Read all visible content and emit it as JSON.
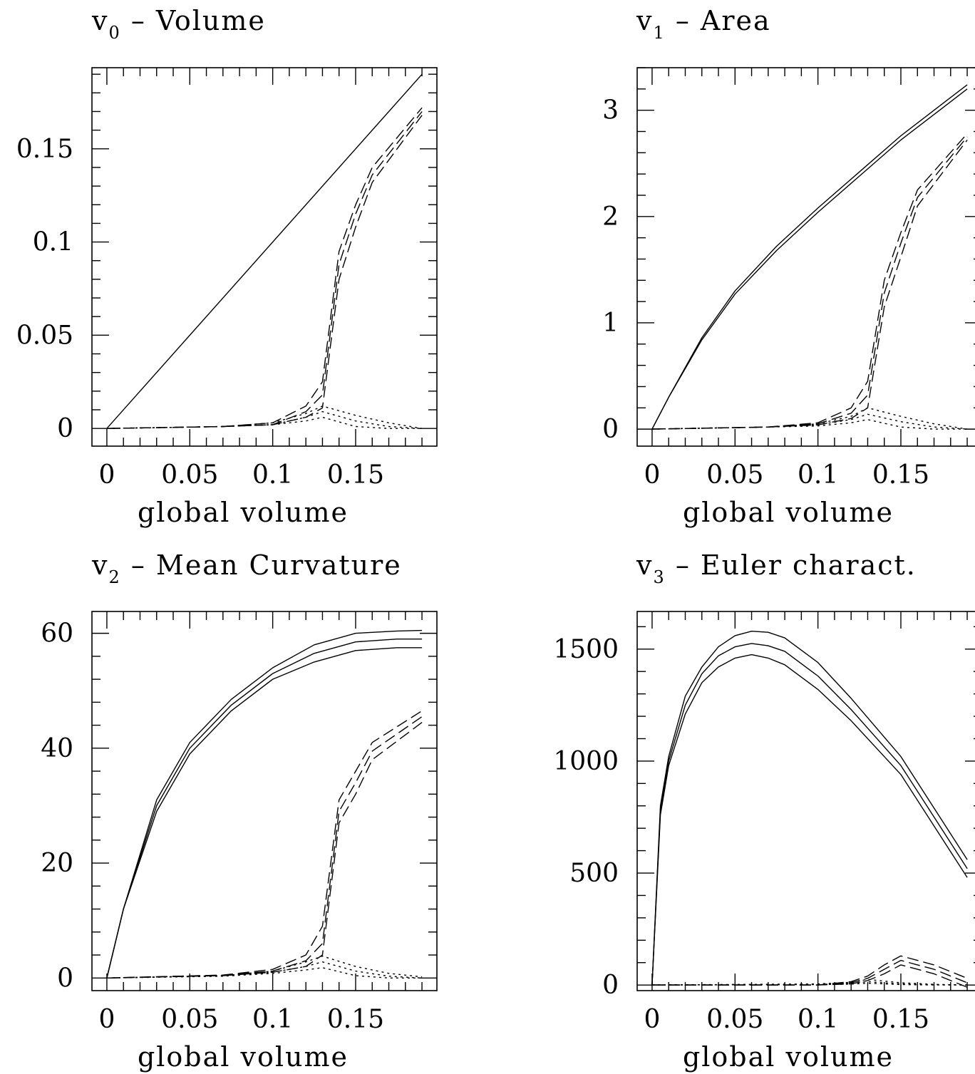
{
  "chart_data": [
    {
      "type": "line",
      "title": "v",
      "title_sub": "0",
      "title_rest": " – Volume",
      "xlabel": "global volume",
      "ylabel": "",
      "xlim": [
        -0.009,
        0.199
      ],
      "ylim": [
        -0.0095,
        0.1935
      ],
      "xticks": [
        "0",
        "0.05",
        "0.1",
        "0.15"
      ],
      "xtick_values": [
        0,
        0.05,
        0.1,
        0.15
      ],
      "yticks": [
        "0",
        "0.05",
        "0.1",
        "0.15"
      ],
      "ytick_values": [
        0,
        0.05,
        0.1,
        0.15
      ],
      "series": [
        {
          "style": "solid",
          "x": [
            0,
            0.19
          ],
          "y": [
            0,
            0.19
          ]
        },
        {
          "style": "dashed",
          "x": [
            0,
            0.07,
            0.1,
            0.12,
            0.13,
            0.14,
            0.15,
            0.16,
            0.19
          ],
          "y": [
            0,
            0.001,
            0.003,
            0.012,
            0.025,
            0.095,
            0.12,
            0.14,
            0.172
          ]
        },
        {
          "style": "dashed",
          "x": [
            0,
            0.07,
            0.1,
            0.12,
            0.13,
            0.14,
            0.15,
            0.16,
            0.19
          ],
          "y": [
            0,
            0.001,
            0.002,
            0.009,
            0.018,
            0.088,
            0.115,
            0.136,
            0.17
          ]
        },
        {
          "style": "dashed",
          "x": [
            0,
            0.07,
            0.1,
            0.12,
            0.13,
            0.14,
            0.15,
            0.16,
            0.19
          ],
          "y": [
            0,
            0.001,
            0.002,
            0.006,
            0.011,
            0.08,
            0.108,
            0.132,
            0.168
          ]
        },
        {
          "style": "dotted",
          "x": [
            0,
            0.07,
            0.1,
            0.12,
            0.13,
            0.15,
            0.17,
            0.19
          ],
          "y": [
            0,
            0.001,
            0.003,
            0.008,
            0.012,
            0.007,
            0.003,
            0
          ]
        },
        {
          "style": "dotted",
          "x": [
            0,
            0.07,
            0.1,
            0.12,
            0.13,
            0.15,
            0.17,
            0.19
          ],
          "y": [
            0,
            0.001,
            0.002,
            0.006,
            0.009,
            0.004,
            0.001,
            0
          ]
        },
        {
          "style": "dotted",
          "x": [
            0,
            0.07,
            0.1,
            0.12,
            0.13,
            0.15,
            0.17,
            0.19
          ],
          "y": [
            0,
            0.001,
            0.002,
            0.004,
            0.006,
            0.001,
            0,
            0
          ]
        }
      ]
    },
    {
      "type": "line",
      "title": "v",
      "title_sub": "1",
      "title_rest": " – Area",
      "xlabel": "global volume",
      "ylabel": "",
      "xlim": [
        -0.009,
        0.199
      ],
      "ylim": [
        -0.16,
        3.4
      ],
      "xticks": [
        "0",
        "0.05",
        "0.1",
        "0.15"
      ],
      "xtick_values": [
        0,
        0.05,
        0.1,
        0.15
      ],
      "yticks": [
        "0",
        "1",
        "2",
        "3"
      ],
      "ytick_values": [
        0,
        1,
        2,
        3
      ],
      "series": [
        {
          "style": "solid",
          "x": [
            0,
            0.01,
            0.02,
            0.03,
            0.05,
            0.075,
            0.1,
            0.125,
            0.15,
            0.175,
            0.19
          ],
          "y": [
            0,
            0.3,
            0.58,
            0.86,
            1.3,
            1.72,
            2.08,
            2.42,
            2.76,
            3.06,
            3.24
          ]
        },
        {
          "style": "solid",
          "x": [
            0,
            0.01,
            0.02,
            0.03,
            0.05,
            0.075,
            0.1,
            0.125,
            0.15,
            0.175,
            0.19
          ],
          "y": [
            0,
            0.3,
            0.57,
            0.84,
            1.27,
            1.68,
            2.04,
            2.38,
            2.72,
            3.02,
            3.2
          ]
        },
        {
          "style": "dashed",
          "x": [
            0,
            0.07,
            0.1,
            0.12,
            0.13,
            0.14,
            0.15,
            0.16,
            0.19
          ],
          "y": [
            0,
            0.02,
            0.06,
            0.2,
            0.45,
            1.4,
            1.85,
            2.25,
            2.78
          ]
        },
        {
          "style": "dashed",
          "x": [
            0,
            0.07,
            0.1,
            0.12,
            0.13,
            0.14,
            0.15,
            0.16,
            0.19
          ],
          "y": [
            0,
            0.02,
            0.05,
            0.15,
            0.32,
            1.28,
            1.75,
            2.18,
            2.75
          ]
        },
        {
          "style": "dashed",
          "x": [
            0,
            0.07,
            0.1,
            0.12,
            0.13,
            0.14,
            0.15,
            0.16,
            0.19
          ],
          "y": [
            0,
            0.02,
            0.04,
            0.1,
            0.2,
            1.15,
            1.62,
            2.1,
            2.72
          ]
        },
        {
          "style": "dotted",
          "x": [
            0,
            0.07,
            0.1,
            0.12,
            0.13,
            0.15,
            0.17,
            0.19
          ],
          "y": [
            0,
            0.02,
            0.05,
            0.12,
            0.2,
            0.12,
            0.05,
            0
          ]
        },
        {
          "style": "dotted",
          "x": [
            0,
            0.07,
            0.1,
            0.12,
            0.13,
            0.15,
            0.17,
            0.19
          ],
          "y": [
            0,
            0.02,
            0.04,
            0.09,
            0.14,
            0.07,
            0.02,
            0
          ]
        },
        {
          "style": "dotted",
          "x": [
            0,
            0.07,
            0.1,
            0.12,
            0.13,
            0.15,
            0.17,
            0.19
          ],
          "y": [
            0,
            0.02,
            0.03,
            0.06,
            0.09,
            0.02,
            0,
            0
          ]
        }
      ]
    },
    {
      "type": "line",
      "title": "v",
      "title_sub": "2",
      "title_rest": " – Mean Curvature",
      "xlabel": "global volume",
      "ylabel": "",
      "xlim": [
        -0.009,
        0.199
      ],
      "ylim": [
        -2.2,
        63.8
      ],
      "xticks": [
        "0",
        "0.05",
        "0.1",
        "0.15"
      ],
      "xtick_values": [
        0,
        0.05,
        0.1,
        0.15
      ],
      "yticks": [
        "0",
        "20",
        "40",
        "60"
      ],
      "ytick_values": [
        0,
        20,
        40,
        60
      ],
      "series": [
        {
          "style": "solid",
          "x": [
            0,
            0.01,
            0.03,
            0.05,
            0.075,
            0.1,
            0.125,
            0.15,
            0.175,
            0.19
          ],
          "y": [
            0,
            12,
            31,
            41,
            48.5,
            54,
            58,
            60,
            60.4,
            60.5
          ]
        },
        {
          "style": "solid",
          "x": [
            0,
            0.01,
            0.03,
            0.05,
            0.075,
            0.1,
            0.125,
            0.15,
            0.175,
            0.19
          ],
          "y": [
            0,
            12,
            30,
            40,
            47.5,
            53,
            56.5,
            58.5,
            59,
            59
          ]
        },
        {
          "style": "solid",
          "x": [
            0,
            0.01,
            0.03,
            0.05,
            0.075,
            0.1,
            0.125,
            0.15,
            0.175,
            0.19
          ],
          "y": [
            0,
            12,
            29,
            39,
            46.5,
            52,
            55,
            57,
            57.5,
            57.5
          ]
        },
        {
          "style": "dashed",
          "x": [
            0,
            0.07,
            0.1,
            0.12,
            0.13,
            0.14,
            0.15,
            0.16,
            0.19
          ],
          "y": [
            0,
            0.5,
            1.5,
            4,
            9,
            31,
            36,
            41,
            46.5
          ]
        },
        {
          "style": "dashed",
          "x": [
            0,
            0.07,
            0.1,
            0.12,
            0.13,
            0.14,
            0.15,
            0.16,
            0.19
          ],
          "y": [
            0,
            0.5,
            1.2,
            3,
            6,
            29,
            34,
            39.5,
            45.5
          ]
        },
        {
          "style": "dashed",
          "x": [
            0,
            0.07,
            0.1,
            0.12,
            0.13,
            0.14,
            0.15,
            0.16,
            0.19
          ],
          "y": [
            0,
            0.4,
            1,
            2,
            4,
            27,
            32,
            38,
            44.5
          ]
        },
        {
          "style": "dotted",
          "x": [
            0,
            0.07,
            0.1,
            0.12,
            0.13,
            0.15,
            0.17,
            0.19
          ],
          "y": [
            0,
            0.4,
            1.2,
            2.8,
            3.8,
            2,
            0.8,
            0.2
          ]
        },
        {
          "style": "dotted",
          "x": [
            0,
            0.07,
            0.1,
            0.12,
            0.13,
            0.15,
            0.17,
            0.19
          ],
          "y": [
            0,
            0.4,
            1,
            2,
            2.8,
            1.2,
            0.3,
            0
          ]
        },
        {
          "style": "dotted",
          "x": [
            0,
            0.07,
            0.1,
            0.12,
            0.13,
            0.15,
            0.17,
            0.19
          ],
          "y": [
            0,
            0.3,
            0.8,
            1.4,
            1.8,
            0.4,
            0,
            0
          ]
        }
      ]
    },
    {
      "type": "line",
      "title": "v",
      "title_sub": "3",
      "title_rest": " – Euler charact.",
      "xlabel": "global volume",
      "ylabel": "",
      "xlim": [
        -0.009,
        0.199
      ],
      "ylim": [
        -25,
        1668
      ],
      "xticks": [
        "0",
        "0.05",
        "0.1",
        "0.15"
      ],
      "xtick_values": [
        0,
        0.05,
        0.1,
        0.15
      ],
      "yticks": [
        "0",
        "500",
        "1000",
        "1500"
      ],
      "ytick_values": [
        0,
        500,
        1000,
        1500
      ],
      "series": [
        {
          "style": "solid",
          "x": [
            0,
            0.005,
            0.01,
            0.02,
            0.03,
            0.04,
            0.05,
            0.06,
            0.07,
            0.08,
            0.1,
            0.12,
            0.15,
            0.19
          ],
          "y": [
            0,
            800,
            1020,
            1290,
            1420,
            1510,
            1560,
            1580,
            1575,
            1550,
            1440,
            1280,
            1020,
            560
          ]
        },
        {
          "style": "solid",
          "x": [
            0,
            0.005,
            0.01,
            0.02,
            0.03,
            0.04,
            0.05,
            0.06,
            0.07,
            0.08,
            0.1,
            0.12,
            0.15,
            0.19
          ],
          "y": [
            0,
            780,
            1000,
            1250,
            1390,
            1470,
            1510,
            1525,
            1515,
            1490,
            1380,
            1230,
            980,
            520
          ]
        },
        {
          "style": "solid",
          "x": [
            0,
            0.005,
            0.01,
            0.02,
            0.03,
            0.04,
            0.05,
            0.06,
            0.07,
            0.08,
            0.1,
            0.12,
            0.15,
            0.19
          ],
          "y": [
            0,
            760,
            980,
            1210,
            1350,
            1420,
            1460,
            1475,
            1460,
            1430,
            1320,
            1180,
            940,
            480
          ]
        },
        {
          "style": "dashed",
          "x": [
            0,
            0.1,
            0.12,
            0.13,
            0.14,
            0.15,
            0.16,
            0.17,
            0.19
          ],
          "y": [
            0,
            0,
            15,
            40,
            90,
            130,
            110,
            90,
            30
          ]
        },
        {
          "style": "dashed",
          "x": [
            0,
            0.1,
            0.12,
            0.13,
            0.14,
            0.15,
            0.16,
            0.17,
            0.19
          ],
          "y": [
            0,
            0,
            10,
            30,
            70,
            110,
            90,
            70,
            10
          ]
        },
        {
          "style": "dashed",
          "x": [
            0,
            0.1,
            0.12,
            0.13,
            0.14,
            0.15,
            0.16,
            0.17,
            0.19
          ],
          "y": [
            0,
            0,
            5,
            20,
            50,
            90,
            70,
            50,
            -10
          ]
        },
        {
          "style": "dotted",
          "x": [
            0,
            0.1,
            0.12,
            0.13,
            0.15,
            0.17,
            0.19
          ],
          "y": [
            0,
            5,
            12,
            25,
            10,
            3,
            0
          ]
        },
        {
          "style": "dotted",
          "x": [
            0,
            0.1,
            0.12,
            0.13,
            0.15,
            0.17,
            0.19
          ],
          "y": [
            0,
            3,
            8,
            15,
            5,
            1,
            0
          ]
        },
        {
          "style": "dotted",
          "x": [
            0,
            0.1,
            0.12,
            0.13,
            0.15,
            0.17,
            0.19
          ],
          "y": [
            0,
            2,
            4,
            8,
            2,
            0,
            0
          ]
        }
      ]
    }
  ]
}
